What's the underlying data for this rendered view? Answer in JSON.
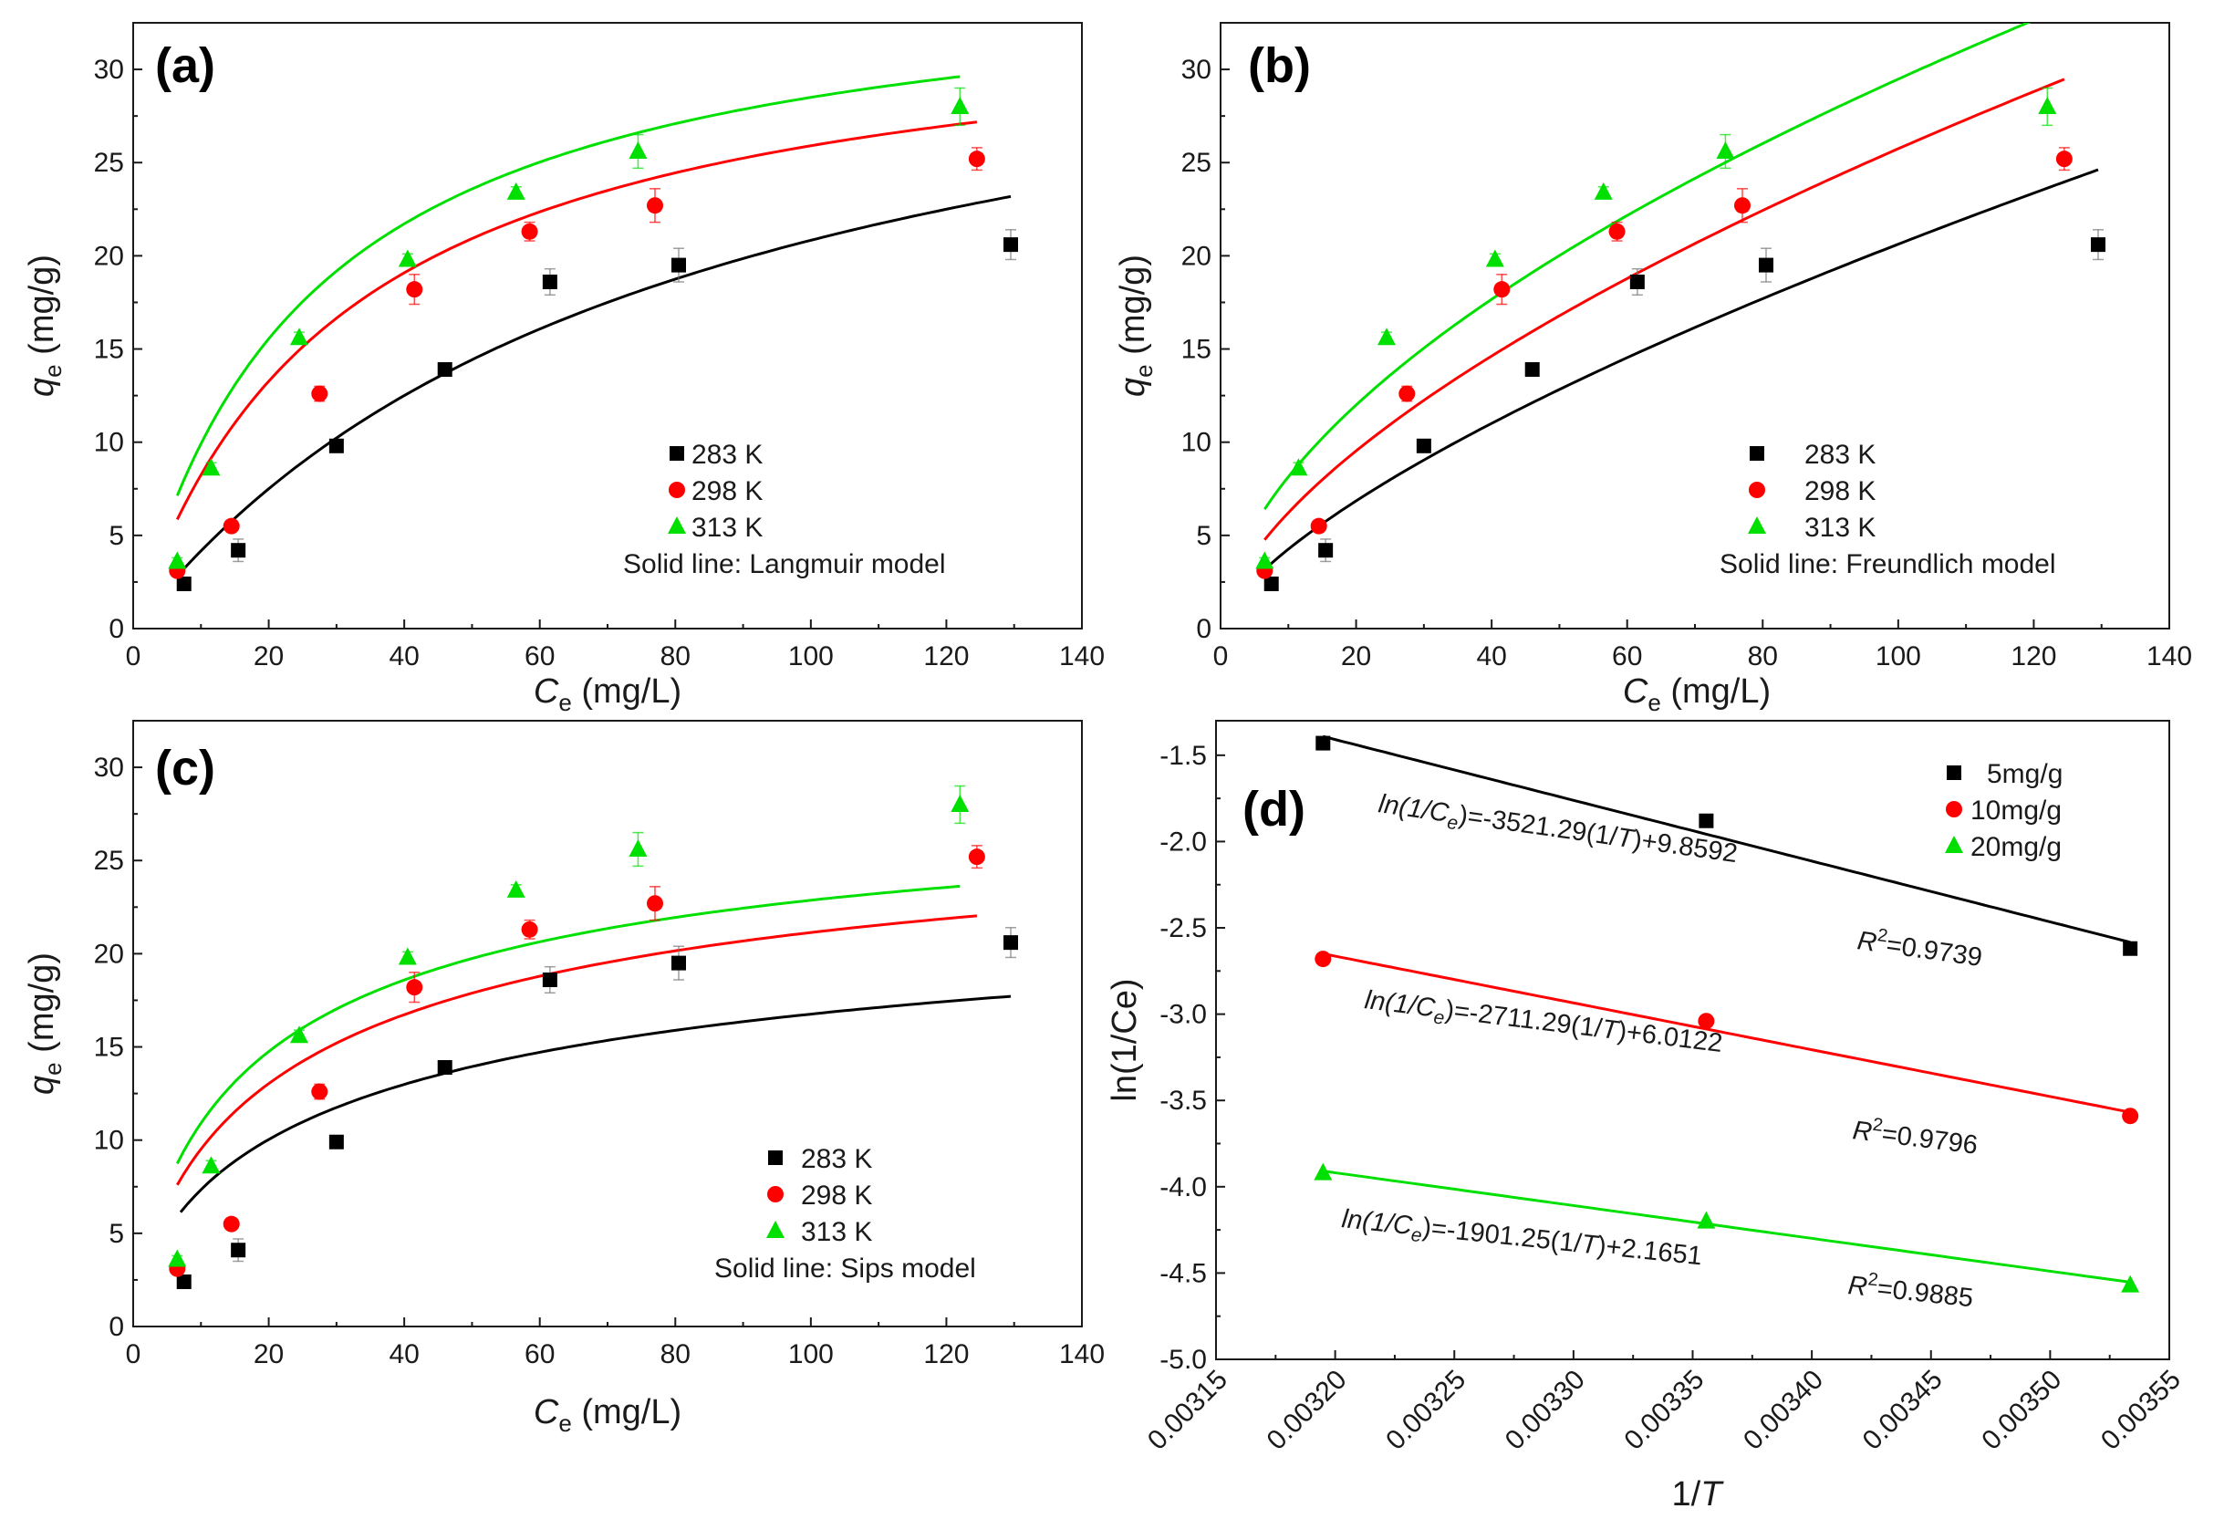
{
  "colors": {
    "black": "#000000",
    "red": "#ff0000",
    "green": "#00e000",
    "axis": "#1a1a1a"
  },
  "chart_data": [
    {
      "panel": "(a)",
      "type": "scatter",
      "xlabel_sym": "C",
      "xlabel_sub": "e",
      "xlabel_unit": " (mg/L)",
      "ylabel_sym": "q",
      "ylabel_sub": "e",
      "ylabel_unit": " (mg/g)",
      "xlim": [
        0,
        140
      ],
      "ylim": [
        0,
        32.5
      ],
      "xticks": [
        0,
        20,
        40,
        60,
        80,
        100,
        120,
        140
      ],
      "yticks": [
        0,
        5,
        10,
        15,
        20,
        25,
        30
      ],
      "legend": [
        "283 K",
        "298 K",
        "313 K"
      ],
      "note": "Solid line: Langmuir model",
      "series": [
        {
          "name": "283 K",
          "marker": "square",
          "color": "#000000",
          "x": [
            7.5,
            15.5,
            30,
            46,
            61.5,
            80.5,
            129.5
          ],
          "y": [
            2.4,
            4.2,
            9.8,
            13.9,
            18.6,
            19.5,
            20.6
          ],
          "err": [
            0.2,
            0.6,
            0.3,
            0.3,
            0.7,
            0.9,
            0.8
          ],
          "fit": {
            "type": "langmuir",
            "qm": 37.5,
            "k": 0.0125,
            "x0": 6.5,
            "x1": 129.5
          }
        },
        {
          "name": "298 K",
          "marker": "circle",
          "color": "#ff0000",
          "x": [
            6.5,
            14.5,
            27.5,
            41.5,
            58.5,
            77,
            124.5
          ],
          "y": [
            3.1,
            5.5,
            12.6,
            18.2,
            21.3,
            22.7,
            25.2
          ],
          "err": [
            0.2,
            0.3,
            0.4,
            0.8,
            0.5,
            0.9,
            0.6
          ],
          "fit": {
            "type": "langmuir",
            "qm": 34.0,
            "k": 0.032,
            "x0": 6.5,
            "x1": 124.5
          }
        },
        {
          "name": "313 K",
          "marker": "triangle",
          "color": "#00e000",
          "x": [
            6.5,
            11.5,
            24.5,
            40.5,
            56.5,
            74.5,
            122
          ],
          "y": [
            3.6,
            8.6,
            15.6,
            19.8,
            23.4,
            25.6,
            28.0
          ],
          "err": [
            0.2,
            0.3,
            0.3,
            0.3,
            0.3,
            0.9,
            1.0
          ],
          "fit": {
            "type": "langmuir",
            "qm": 36.0,
            "k": 0.038,
            "x0": 6.5,
            "x1": 122
          }
        }
      ]
    },
    {
      "panel": "(b)",
      "type": "scatter",
      "xlabel_sym": "C",
      "xlabel_sub": "e",
      "xlabel_unit": " (mg/L)",
      "ylabel_sym": "q",
      "ylabel_sub": "e",
      "ylabel_unit": " (mg/g)",
      "xlim": [
        0,
        140
      ],
      "ylim": [
        0,
        32.5
      ],
      "xticks": [
        0,
        20,
        40,
        60,
        80,
        100,
        120,
        140
      ],
      "yticks": [
        0,
        5,
        10,
        15,
        20,
        25,
        30
      ],
      "legend": [
        "283 K",
        "298 K",
        "313 K"
      ],
      "note": "Solid line: Freundlich model",
      "series": [
        {
          "name": "283 K",
          "marker": "square",
          "color": "#000000",
          "x": [
            7.5,
            15.5,
            30,
            46,
            61.5,
            80.5,
            129.5
          ],
          "y": [
            2.4,
            4.2,
            9.8,
            13.9,
            18.6,
            19.5,
            20.6
          ],
          "err": [
            0.2,
            0.6,
            0.3,
            0.3,
            0.7,
            0.9,
            0.8
          ],
          "fit": {
            "type": "freundlich",
            "kf": 0.88,
            "n": 1.46,
            "x0": 6.5,
            "x1": 129.5
          }
        },
        {
          "name": "298 K",
          "marker": "circle",
          "color": "#ff0000",
          "x": [
            6.5,
            14.5,
            27.5,
            41.5,
            58.5,
            77,
            124.5
          ],
          "y": [
            3.1,
            5.5,
            12.6,
            18.2,
            21.3,
            22.7,
            25.2
          ],
          "err": [
            0.2,
            0.3,
            0.4,
            0.8,
            0.5,
            0.9,
            0.6
          ],
          "fit": {
            "type": "freundlich",
            "kf": 1.5,
            "n": 1.62,
            "x0": 6.5,
            "x1": 124.5
          }
        },
        {
          "name": "313 K",
          "marker": "triangle",
          "color": "#00e000",
          "x": [
            6.5,
            11.5,
            24.5,
            40.5,
            56.5,
            74.5,
            122
          ],
          "y": [
            3.6,
            8.6,
            15.6,
            19.8,
            23.4,
            25.6,
            28.0
          ],
          "err": [
            0.2,
            0.3,
            0.3,
            0.3,
            0.3,
            0.9,
            1.0
          ],
          "fit": {
            "type": "freundlich",
            "kf": 2.25,
            "n": 1.79,
            "x0": 6.5,
            "x1": 122
          }
        }
      ]
    },
    {
      "panel": "(c)",
      "type": "scatter",
      "xlabel_sym": "C",
      "xlabel_sub": "e",
      "xlabel_unit": " (mg/L)",
      "ylabel_sym": "q",
      "ylabel_sub": "e",
      "ylabel_unit": " (mg/g)",
      "xlim": [
        0,
        140
      ],
      "ylim": [
        0,
        32.5
      ],
      "xticks": [
        0,
        20,
        40,
        60,
        80,
        100,
        120,
        140
      ],
      "yticks": [
        0,
        5,
        10,
        15,
        20,
        25,
        30
      ],
      "legend": [
        "283 K",
        "298 K",
        "313 K"
      ],
      "note": "Solid line: Sips model",
      "series": [
        {
          "name": "283 K",
          "marker": "square",
          "color": "#000000",
          "x": [
            7.5,
            15.5,
            30,
            46,
            61.5,
            80.5,
            129.5
          ],
          "y": [
            2.4,
            4.1,
            9.9,
            13.9,
            18.6,
            19.5,
            20.6
          ],
          "err": [
            0.2,
            0.6,
            0.3,
            0.3,
            0.7,
            0.9,
            0.8
          ],
          "fit": {
            "type": "sips",
            "qm": 25.0,
            "k": 0.028,
            "n": 1.45,
            "x0": 7,
            "x1": 129.5
          }
        },
        {
          "name": "298 K",
          "marker": "circle",
          "color": "#ff0000",
          "x": [
            6.5,
            14.5,
            27.5,
            41.5,
            58.5,
            77,
            124.5
          ],
          "y": [
            3.1,
            5.5,
            12.6,
            18.2,
            21.3,
            22.7,
            25.2
          ],
          "err": [
            0.2,
            0.3,
            0.4,
            0.8,
            0.5,
            0.9,
            0.6
          ],
          "fit": {
            "type": "sips",
            "qm": 29.0,
            "k": 0.038,
            "n": 1.35,
            "x0": 6.5,
            "x1": 124.5
          }
        },
        {
          "name": "313 K",
          "marker": "triangle",
          "color": "#00e000",
          "x": [
            6.5,
            11.5,
            24.5,
            40.5,
            56.5,
            74.5,
            122
          ],
          "y": [
            3.6,
            8.6,
            15.6,
            19.8,
            23.4,
            25.6,
            28.0
          ],
          "err": [
            0.2,
            0.3,
            0.3,
            0.3,
            0.3,
            0.9,
            1.0
          ],
          "fit": {
            "type": "sips",
            "qm": 29.5,
            "k": 0.05,
            "n": 1.3,
            "x0": 6.5,
            "x1": 122
          }
        }
      ]
    },
    {
      "panel": "(d)",
      "type": "line",
      "xlabel_plain": "1/",
      "xlabel_sym": "T",
      "ylabel_plain": "ln(1/Ce)",
      "xlim": [
        0.00315,
        0.00355
      ],
      "ylim": [
        -5.0,
        -1.3
      ],
      "xticks": [
        0.00315,
        0.0032,
        0.00325,
        0.0033,
        0.00335,
        0.0034,
        0.00345,
        0.0035,
        0.00355
      ],
      "xtick_labels": [
        "0.00315",
        "0.00320",
        "0.00325",
        "0.00330",
        "0.00335",
        "0.00340",
        "0.00345",
        "0.00350",
        "0.00355"
      ],
      "yticks": [
        -5.0,
        -4.5,
        -4.0,
        -3.5,
        -3.0,
        -2.5,
        -2.0,
        -1.5
      ],
      "ytick_labels": [
        "-5.0",
        "-4.5",
        "-4.0",
        "-3.5",
        "-3.0",
        "-2.5",
        "-2.0",
        "-1.5"
      ],
      "legend": [
        "5mg/g",
        "10mg/g",
        "20mg/g"
      ],
      "series": [
        {
          "name": "5mg/g",
          "marker": "square",
          "color": "#000000",
          "x": [
            0.0031949,
            0.0033557,
            0.0035336
          ],
          "y": [
            -1.43,
            -1.88,
            -2.62
          ],
          "fit": {
            "type": "linear",
            "slope": -3521.29,
            "intercept": 9.8592
          },
          "eq_pre": "ln(1/C",
          "eq_sub": "e",
          "eq_mid": ")=-3521.29(1/",
          "eq_T": "T",
          "eq_post": ")+9.8592",
          "r2_label": "R",
          "r2_exp": "2",
          "r2_value": "=0.9739"
        },
        {
          "name": "10mg/g",
          "marker": "circle",
          "color": "#ff0000",
          "x": [
            0.0031949,
            0.0033557,
            0.0035336
          ],
          "y": [
            -2.68,
            -3.04,
            -3.59
          ],
          "fit": {
            "type": "linear",
            "slope": -2711.29,
            "intercept": 6.0122
          },
          "eq_pre": "ln(1/C",
          "eq_sub": "e",
          "eq_mid": ")=-2711.29(1/",
          "eq_T": "T",
          "eq_post": ")+6.0122",
          "r2_label": "R",
          "r2_exp": "2",
          "r2_value": "=0.9796"
        },
        {
          "name": "20mg/g",
          "marker": "triangle",
          "color": "#00e000",
          "x": [
            0.0031949,
            0.0033557,
            0.0035336
          ],
          "y": [
            -3.92,
            -4.2,
            -4.57
          ],
          "fit": {
            "type": "linear",
            "slope": -1901.25,
            "intercept": 2.1651
          },
          "eq_pre": "ln(1/C",
          "eq_sub": "e",
          "eq_mid": ")=-1901.25(1/",
          "eq_T": "T",
          "eq_post": ")+2.1651",
          "r2_label": "R",
          "r2_exp": "2",
          "r2_value": "=0.9885"
        }
      ]
    }
  ]
}
